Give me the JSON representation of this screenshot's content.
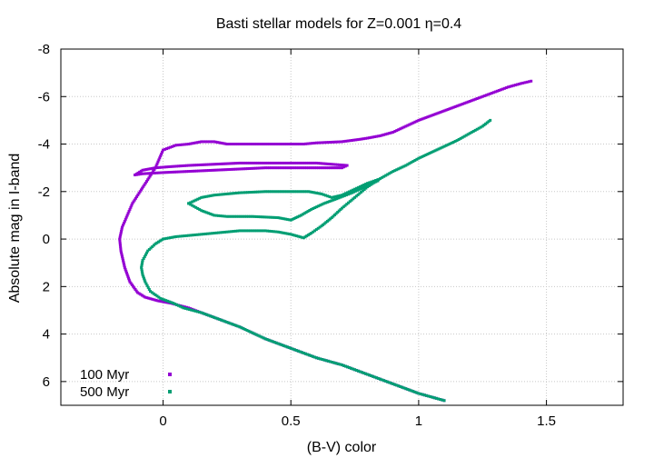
{
  "chart_data": {
    "type": "scatter",
    "title": "Basti stellar models for Z=0.001 η=0.4",
    "xlabel": "(B-V) color",
    "ylabel": "Absolute mag in I-band",
    "xlim": [
      -0.4,
      1.8
    ],
    "ylim": [
      7,
      -8
    ],
    "y_reversed": true,
    "grid": true,
    "legend_position": "bottom-left",
    "x_ticks": [
      0,
      0.5,
      1,
      1.5
    ],
    "x_tick_labels": [
      "0",
      "0.5",
      "1",
      "1.5"
    ],
    "y_ticks": [
      -8,
      -6,
      -4,
      -2,
      0,
      2,
      4,
      6
    ],
    "y_tick_labels": [
      "-8",
      "-6",
      "-4",
      "-2",
      "0",
      "2",
      "4",
      "6"
    ],
    "series": [
      {
        "name": "100 Myr",
        "color": "#9400d3",
        "tracks": [
          [
            [
              1.1,
              6.8
            ],
            [
              1.0,
              6.5
            ],
            [
              0.9,
              6.1
            ],
            [
              0.8,
              5.7
            ],
            [
              0.7,
              5.3
            ],
            [
              0.6,
              5.0
            ],
            [
              0.5,
              4.6
            ],
            [
              0.4,
              4.2
            ],
            [
              0.3,
              3.7
            ],
            [
              0.2,
              3.3
            ],
            [
              0.1,
              2.9
            ],
            [
              0.03,
              2.7
            ],
            [
              -0.02,
              2.6
            ],
            [
              -0.07,
              2.45
            ],
            [
              -0.1,
              2.25
            ],
            [
              -0.13,
              1.8
            ],
            [
              -0.15,
              1.2
            ],
            [
              -0.165,
              0.5
            ],
            [
              -0.17,
              0.0
            ],
            [
              -0.16,
              -0.5
            ],
            [
              -0.14,
              -1.0
            ],
            [
              -0.12,
              -1.5
            ],
            [
              -0.09,
              -2.0
            ],
            [
              -0.06,
              -2.5
            ],
            [
              -0.03,
              -3.0
            ],
            [
              -0.01,
              -3.5
            ],
            [
              0.0,
              -3.75
            ],
            [
              0.05,
              -3.95
            ],
            [
              0.1,
              -4.0
            ],
            [
              0.15,
              -4.1
            ],
            [
              0.2,
              -4.1
            ],
            [
              0.25,
              -4.0
            ],
            [
              0.3,
              -4.0
            ],
            [
              0.35,
              -4.0
            ],
            [
              0.4,
              -4.0
            ],
            [
              0.45,
              -4.0
            ],
            [
              0.5,
              -4.0
            ],
            [
              0.55,
              -4.0
            ],
            [
              0.6,
              -4.05
            ],
            [
              0.7,
              -4.1
            ],
            [
              0.77,
              -4.2
            ],
            [
              0.8,
              -4.25
            ],
            [
              0.85,
              -4.35
            ],
            [
              0.9,
              -4.5
            ],
            [
              0.95,
              -4.75
            ],
            [
              1.0,
              -5.0
            ],
            [
              1.05,
              -5.2
            ],
            [
              1.1,
              -5.4
            ],
            [
              1.15,
              -5.6
            ],
            [
              1.2,
              -5.8
            ],
            [
              1.25,
              -6.0
            ],
            [
              1.3,
              -6.2
            ],
            [
              1.35,
              -6.4
            ],
            [
              1.4,
              -6.55
            ],
            [
              1.44,
              -6.65
            ]
          ],
          [
            [
              -0.11,
              -2.7
            ],
            [
              -0.08,
              -2.9
            ],
            [
              -0.03,
              -3.0
            ],
            [
              0.03,
              -3.05
            ],
            [
              0.1,
              -3.1
            ],
            [
              0.2,
              -3.15
            ],
            [
              0.3,
              -3.2
            ],
            [
              0.4,
              -3.2
            ],
            [
              0.5,
              -3.2
            ],
            [
              0.6,
              -3.2
            ],
            [
              0.66,
              -3.15
            ],
            [
              0.72,
              -3.1
            ],
            [
              0.7,
              -3.0
            ],
            [
              0.6,
              -3.0
            ],
            [
              0.5,
              -3.0
            ],
            [
              0.4,
              -3.0
            ],
            [
              0.3,
              -2.95
            ],
            [
              0.2,
              -2.9
            ],
            [
              0.1,
              -2.85
            ],
            [
              0.0,
              -2.8
            ],
            [
              -0.08,
              -2.75
            ],
            [
              -0.11,
              -2.7
            ]
          ]
        ]
      },
      {
        "name": "500 Myr",
        "color": "#009e73",
        "tracks": [
          [
            [
              1.1,
              6.8
            ],
            [
              1.0,
              6.5
            ],
            [
              0.9,
              6.1
            ],
            [
              0.8,
              5.7
            ],
            [
              0.7,
              5.3
            ],
            [
              0.6,
              5.0
            ],
            [
              0.5,
              4.6
            ],
            [
              0.4,
              4.2
            ],
            [
              0.3,
              3.7
            ],
            [
              0.2,
              3.3
            ],
            [
              0.15,
              3.1
            ],
            [
              0.08,
              2.9
            ],
            [
              0.04,
              2.7
            ],
            [
              -0.01,
              2.5
            ],
            [
              -0.05,
              2.2
            ],
            [
              -0.07,
              1.8
            ],
            [
              -0.08,
              1.5
            ],
            [
              -0.085,
              1.2
            ],
            [
              -0.08,
              0.9
            ],
            [
              -0.06,
              0.5
            ],
            [
              -0.03,
              0.2
            ],
            [
              0.0,
              0.0
            ],
            [
              0.05,
              -0.1
            ],
            [
              0.1,
              -0.15
            ],
            [
              0.15,
              -0.2
            ],
            [
              0.2,
              -0.25
            ],
            [
              0.25,
              -0.3
            ],
            [
              0.3,
              -0.35
            ],
            [
              0.35,
              -0.35
            ],
            [
              0.4,
              -0.35
            ],
            [
              0.45,
              -0.3
            ],
            [
              0.5,
              -0.2
            ],
            [
              0.55,
              -0.05
            ],
            [
              0.58,
              -0.25
            ],
            [
              0.62,
              -0.55
            ],
            [
              0.66,
              -0.9
            ],
            [
              0.7,
              -1.3
            ],
            [
              0.75,
              -1.75
            ],
            [
              0.8,
              -2.2
            ],
            [
              0.85,
              -2.55
            ],
            [
              0.9,
              -2.85
            ],
            [
              0.95,
              -3.1
            ],
            [
              1.0,
              -3.4
            ],
            [
              1.05,
              -3.65
            ],
            [
              1.1,
              -3.9
            ],
            [
              1.15,
              -4.15
            ],
            [
              1.2,
              -4.45
            ],
            [
              1.25,
              -4.75
            ],
            [
              1.28,
              -5.0
            ]
          ],
          [
            [
              0.1,
              -1.5
            ],
            [
              0.15,
              -1.75
            ],
            [
              0.2,
              -1.85
            ],
            [
              0.3,
              -1.95
            ],
            [
              0.4,
              -2.0
            ],
            [
              0.5,
              -2.0
            ],
            [
              0.57,
              -2.0
            ],
            [
              0.62,
              -1.9
            ],
            [
              0.66,
              -1.75
            ],
            [
              0.7,
              -1.85
            ],
            [
              0.75,
              -2.1
            ],
            [
              0.8,
              -2.35
            ],
            [
              0.84,
              -2.5
            ],
            [
              0.84,
              -2.45
            ],
            [
              0.79,
              -2.2
            ],
            [
              0.74,
              -1.95
            ],
            [
              0.68,
              -1.7
            ],
            [
              0.63,
              -1.5
            ],
            [
              0.58,
              -1.25
            ],
            [
              0.54,
              -1.0
            ],
            [
              0.5,
              -0.8
            ],
            [
              0.45,
              -0.9
            ],
            [
              0.35,
              -0.95
            ],
            [
              0.25,
              -0.95
            ],
            [
              0.2,
              -1.0
            ],
            [
              0.15,
              -1.2
            ],
            [
              0.1,
              -1.5
            ]
          ]
        ]
      }
    ]
  }
}
